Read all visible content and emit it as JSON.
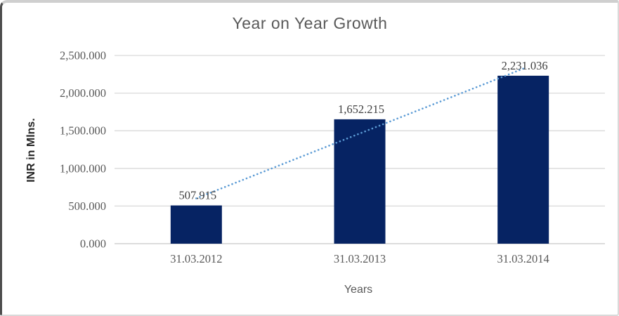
{
  "chart_data": {
    "type": "bar",
    "title": "Year on Year Growth",
    "xlabel": "Years",
    "ylabel": "INR in Mlns.",
    "categories": [
      "31.03.2012",
      "31.03.2013",
      "31.03.2014"
    ],
    "values": [
      507.915,
      1652.215,
      2231.036
    ],
    "data_labels": [
      "507.915",
      "1,652.215",
      "2,231.036"
    ],
    "ylim": [
      0,
      2500
    ],
    "ytick_step": 500,
    "ytick_labels": [
      "0.000",
      "500.000",
      "1,000.000",
      "1,500.000",
      "2,000.000",
      "2,500.000"
    ],
    "grid": true,
    "legend_position": "none",
    "bar_color": "#062363",
    "gridline_color": "#d9d9d9",
    "axis_line_color": "#c6c6c6",
    "tick_label_color": "#595959",
    "data_label_color": "#3f3f3f",
    "title_color": "#595959",
    "trendline": {
      "type": "linear",
      "style": "dotted",
      "color": "#5b9bd5",
      "start_value": 602,
      "end_value": 2325
    }
  }
}
